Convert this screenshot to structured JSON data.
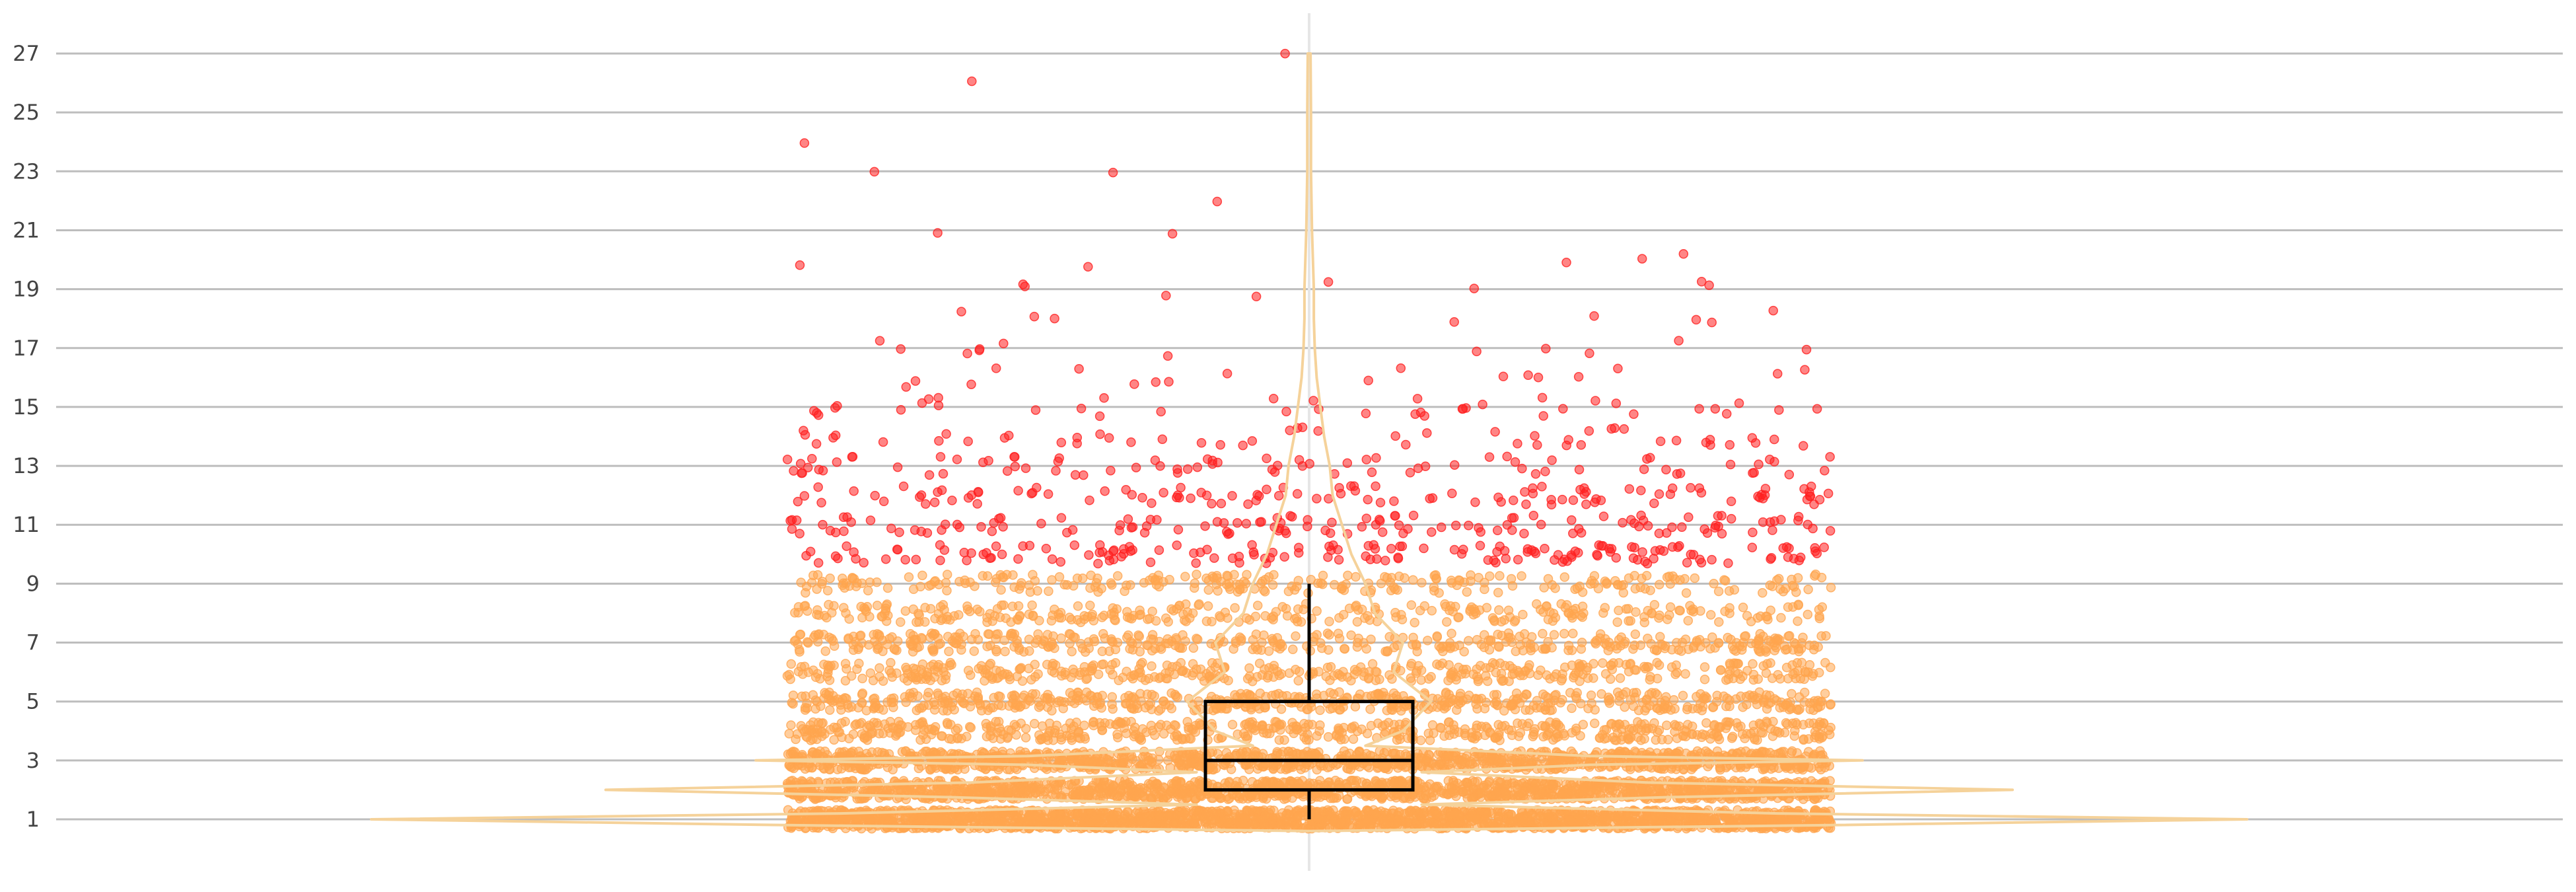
{
  "chart_data": {
    "type": "scatter",
    "title": "",
    "xlabel": "",
    "ylabel": "",
    "ylim": [
      0.4,
      28.2
    ],
    "y_ticks": [
      1,
      3,
      5,
      7,
      9,
      11,
      13,
      15,
      17,
      19,
      21,
      23,
      25,
      27
    ],
    "grid": "horizontal",
    "overlays": [
      "violin",
      "box",
      "jittered-points"
    ],
    "box": {
      "whisker_low": 1,
      "q1": 2,
      "median": 3,
      "q3": 5,
      "whisker_high": 9
    },
    "outlier_threshold": 9.6,
    "violin_density": [
      {
        "y": 0.6,
        "w": 0.0
      },
      {
        "y": 0.8,
        "w": 0.55
      },
      {
        "y": 1.0,
        "w": 1.0
      },
      {
        "y": 1.2,
        "w": 0.5
      },
      {
        "y": 1.5,
        "w": 0.12
      },
      {
        "y": 1.75,
        "w": 0.38
      },
      {
        "y": 2.0,
        "w": 0.75
      },
      {
        "y": 2.25,
        "w": 0.36
      },
      {
        "y": 2.6,
        "w": 0.12
      },
      {
        "y": 2.85,
        "w": 0.3
      },
      {
        "y": 3.0,
        "w": 0.59
      },
      {
        "y": 3.15,
        "w": 0.3
      },
      {
        "y": 3.5,
        "w": 0.06
      },
      {
        "y": 4.0,
        "w": 0.1
      },
      {
        "y": 5.0,
        "w": 0.13
      },
      {
        "y": 6.0,
        "w": 0.09
      },
      {
        "y": 7.0,
        "w": 0.1
      },
      {
        "y": 8.0,
        "w": 0.07
      },
      {
        "y": 9.0,
        "w": 0.06
      },
      {
        "y": 10.0,
        "w": 0.045
      },
      {
        "y": 11.0,
        "w": 0.035
      },
      {
        "y": 12.0,
        "w": 0.025
      },
      {
        "y": 13.0,
        "w": 0.022
      },
      {
        "y": 14.0,
        "w": 0.016
      },
      {
        "y": 15.0,
        "w": 0.012
      },
      {
        "y": 16.0,
        "w": 0.008
      },
      {
        "y": 17.0,
        "w": 0.006
      },
      {
        "y": 18.0,
        "w": 0.005
      },
      {
        "y": 19.0,
        "w": 0.005
      },
      {
        "y": 20.0,
        "w": 0.004
      },
      {
        "y": 21.0,
        "w": 0.003
      },
      {
        "y": 23.0,
        "w": 0.002
      },
      {
        "y": 25.0,
        "w": 0.002
      },
      {
        "y": 27.0,
        "w": 0.0015
      }
    ],
    "series": [
      {
        "role": "inliers",
        "color": "#ffa54f",
        "values": [
          {
            "y": 1.0,
            "n": 2000,
            "spread": 0.32
          },
          {
            "y": 2.0,
            "n": 1500,
            "spread": 0.32
          },
          {
            "y": 3.0,
            "n": 1180,
            "spread": 0.32
          },
          {
            "y": 4.0,
            "n": 560,
            "spread": 0.32
          },
          {
            "y": 5.0,
            "n": 560,
            "spread": 0.32
          },
          {
            "y": 6.0,
            "n": 420,
            "spread": 0.32
          },
          {
            "y": 7.0,
            "n": 420,
            "spread": 0.32
          },
          {
            "y": 8.0,
            "n": 300,
            "spread": 0.32
          },
          {
            "y": 9.0,
            "n": 260,
            "spread": 0.32
          }
        ]
      },
      {
        "role": "outliers",
        "color": "#ff2020",
        "values": [
          {
            "y": 10.0,
            "n": 160,
            "spread": 0.32
          },
          {
            "y": 11.0,
            "n": 130,
            "spread": 0.32
          },
          {
            "y": 12.0,
            "n": 110,
            "spread": 0.32
          },
          {
            "y": 13.0,
            "n": 80,
            "spread": 0.32
          },
          {
            "y": 14.0,
            "n": 50,
            "spread": 0.32
          },
          {
            "y": 15.0,
            "n": 40,
            "spread": 0.32
          },
          {
            "y": 16.0,
            "n": 18,
            "spread": 0.32
          },
          {
            "y": 17.0,
            "n": 12,
            "spread": 0.32
          },
          {
            "y": 18.0,
            "n": 8,
            "spread": 0.32
          },
          {
            "y": 19.0,
            "n": 8,
            "spread": 0.32
          },
          {
            "y": 20.0,
            "n": 5,
            "spread": 0.32
          },
          {
            "y": 21.0,
            "n": 2,
            "spread": 0.32
          },
          {
            "y": 22.0,
            "n": 1,
            "spread": 0.2
          },
          {
            "y": 23.0,
            "n": 2,
            "spread": 0.2
          },
          {
            "y": 24.0,
            "n": 1,
            "spread": 0.2
          },
          {
            "y": 26.0,
            "n": 1,
            "spread": 0.2
          },
          {
            "y": 27.0,
            "n": 1,
            "spread": 0.05
          }
        ]
      }
    ],
    "colors": {
      "grid": "#bdbdbd",
      "inlier_point": "#ffa54f",
      "outlier_point": "#ff2020",
      "violin": "#f5d29a",
      "box": "#000000",
      "center_line": "#e6e6e6"
    }
  }
}
